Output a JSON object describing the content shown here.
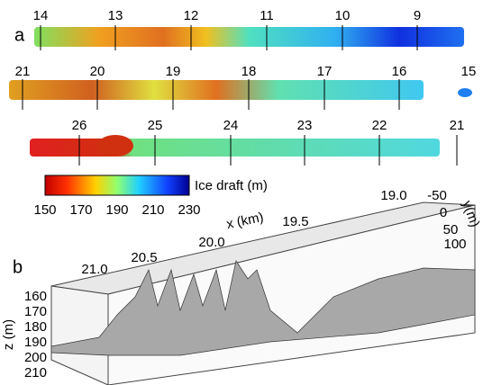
{
  "panel_a": {
    "label": "a",
    "strips": [
      {
        "ticks": [
          "14",
          "13",
          "12",
          "11",
          "10",
          "9"
        ]
      },
      {
        "ticks": [
          "21",
          "20",
          "19",
          "18",
          "17",
          "16",
          "15"
        ]
      },
      {
        "ticks": [
          "26",
          "25",
          "24",
          "23",
          "22",
          "21"
        ]
      }
    ],
    "colorbar": {
      "label": "Ice draft (m)",
      "ticks": [
        "150",
        "170",
        "190",
        "210",
        "230"
      ]
    }
  },
  "panel_b": {
    "label": "b",
    "x_axis": {
      "label": "x (km)",
      "ticks": [
        "21.0",
        "20.5",
        "20.0",
        "19.5",
        "19.0"
      ]
    },
    "y_axis": {
      "label": "y(m)",
      "ticks": [
        "-50",
        "0",
        "50",
        "100"
      ]
    },
    "z_axis": {
      "label": "z (m)",
      "ticks": [
        "160",
        "170",
        "180",
        "190",
        "200",
        "210"
      ]
    }
  }
}
